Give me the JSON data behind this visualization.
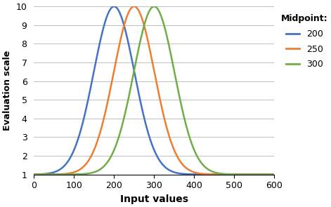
{
  "title": "",
  "xlabel": "Input values",
  "ylabel": "Evaluation scale",
  "xlim": [
    0,
    600
  ],
  "ylim": [
    1,
    10
  ],
  "yticks": [
    1,
    2,
    3,
    4,
    5,
    6,
    7,
    8,
    9,
    10
  ],
  "xticks": [
    0,
    100,
    200,
    300,
    400,
    500,
    600
  ],
  "midpoints": [
    200,
    250,
    300
  ],
  "colors": [
    "#4472C4",
    "#ED7D31",
    "#70AD47"
  ],
  "legend_title": "Midpoint:",
  "legend_labels": [
    "200",
    "250",
    "300"
  ],
  "spread": 72,
  "background_color": "#FFFFFF",
  "grid_color": "#BFBFBF"
}
